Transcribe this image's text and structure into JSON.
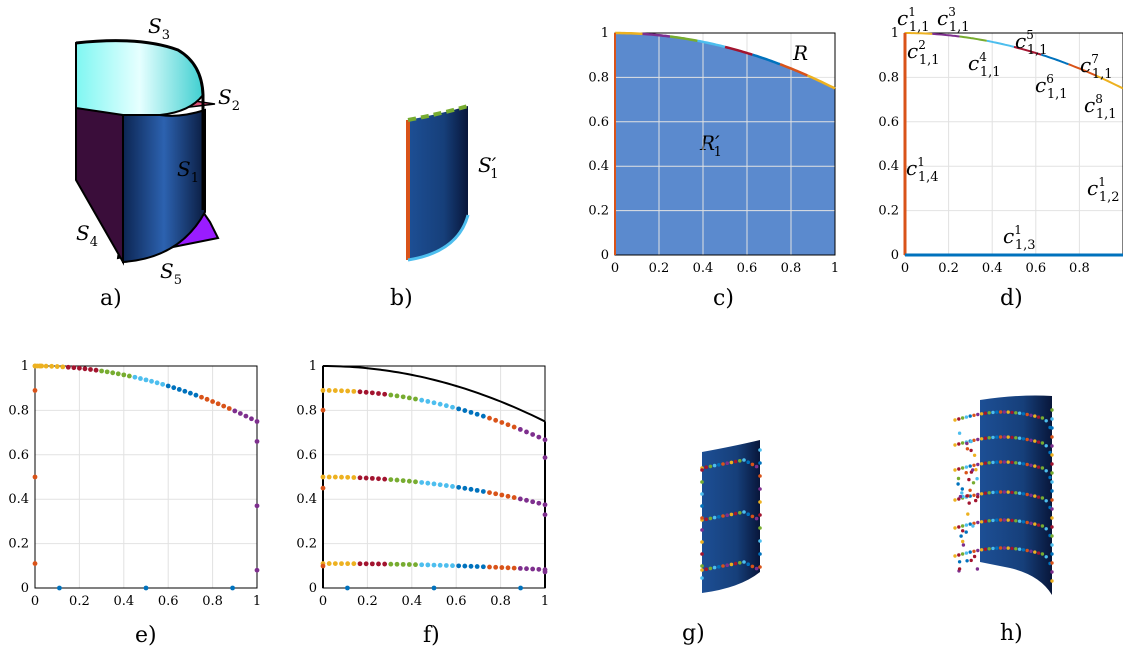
{
  "panel_labels": {
    "a": "a)",
    "b": "b)",
    "c": "c)",
    "d": "d)",
    "e": "e)",
    "f": "f)",
    "g": "g)",
    "h": "h)"
  },
  "surface_labels": {
    "s1": "S",
    "s1_sub": "1",
    "s2": "S",
    "s2_sub": "2",
    "s3": "S",
    "s3_sub": "3",
    "s4": "S",
    "s4_sub": "4",
    "s5": "S",
    "s5_sub": "5",
    "s1p": "S",
    "s1p_sub": "1",
    "s1p_prime": "′"
  },
  "region_labels": {
    "R": "R",
    "R1": "R",
    "R1_sub": "1",
    "R1_prime": "′"
  },
  "curve_labels": [
    {
      "base": "c",
      "sup": "1",
      "sub": "1,1"
    },
    {
      "base": "c",
      "sup": "2",
      "sub": "1,1"
    },
    {
      "base": "c",
      "sup": "3",
      "sub": "1,1"
    },
    {
      "base": "c",
      "sup": "4",
      "sub": "1,1"
    },
    {
      "base": "c",
      "sup": "5",
      "sub": "1,1"
    },
    {
      "base": "c",
      "sup": "6",
      "sub": "1,1"
    },
    {
      "base": "c",
      "sup": "7",
      "sub": "1,1"
    },
    {
      "base": "c",
      "sup": "8",
      "sub": "1,1"
    },
    {
      "base": "c",
      "sup": "1",
      "sub": "1,4"
    },
    {
      "base": "c",
      "sup": "1",
      "sub": "1,2"
    },
    {
      "base": "c",
      "sup": "1",
      "sub": "1,3"
    }
  ],
  "ticks": {
    "x": [
      "0",
      "0.2",
      "0.4",
      "0.6",
      "0.8",
      "1"
    ],
    "x_d": [
      "0",
      "0.2",
      "0.4",
      "0.6",
      "0.8"
    ],
    "y": [
      "0",
      "0.2",
      "0.4",
      "0.6",
      "0.8",
      "1"
    ]
  },
  "colors": {
    "region_fill": "#5b8ace",
    "surface_dark": "#102a55",
    "surface_mid": "#2458a0",
    "seg_palette": [
      "#edb120",
      "#a2142f",
      "#77ac30",
      "#4dbeee",
      "#0072bd",
      "#d95319",
      "#7e2f8e"
    ]
  },
  "chart_data": [
    {
      "panel": "c",
      "type": "area",
      "xlim": [
        0,
        1
      ],
      "ylim": [
        0,
        1
      ],
      "grid": true,
      "x": [
        0,
        0.2,
        0.4,
        0.6,
        0.8,
        1
      ],
      "y": [
        1,
        0.99,
        0.95,
        0.89,
        0.82,
        0.75
      ]
    },
    {
      "panel": "d",
      "type": "line",
      "xlim": [
        0,
        1
      ],
      "ylim": [
        0,
        1
      ],
      "grid": true,
      "segments": 8
    },
    {
      "panel": "e",
      "type": "scatter",
      "xlim": [
        0,
        1
      ],
      "ylim": [
        0,
        1
      ],
      "grid": true
    },
    {
      "panel": "f",
      "type": "scatter",
      "xlim": [
        0,
        1
      ],
      "ylim": [
        0,
        1
      ],
      "grid": true,
      "levels": [
        1,
        0.9,
        0.5,
        0.11
      ]
    }
  ]
}
